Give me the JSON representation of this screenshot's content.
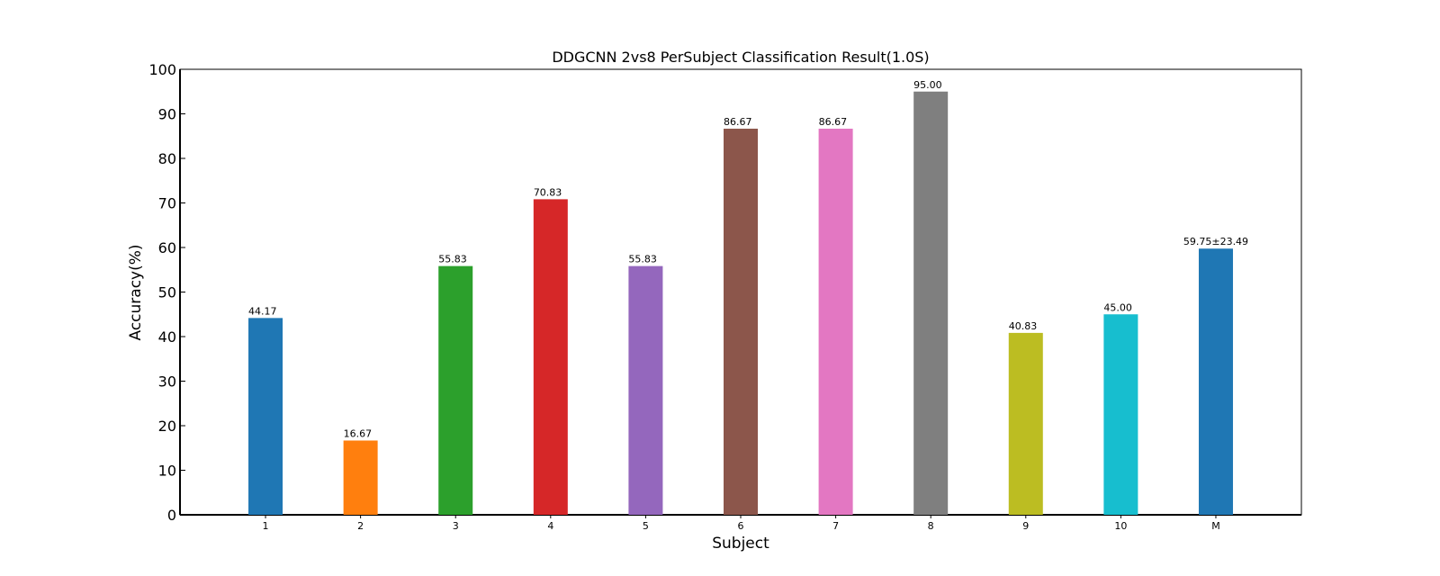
{
  "chart_data": {
    "type": "bar",
    "title": "DDGCNN 2vs8 PerSubject Classification Result(1.0S)",
    "xlabel": "Subject",
    "ylabel": "Accuracy(%)",
    "ylim": [
      0,
      100
    ],
    "yticks": [
      0,
      10,
      20,
      30,
      40,
      50,
      60,
      70,
      80,
      90,
      100
    ],
    "categories": [
      "1",
      "2",
      "3",
      "4",
      "5",
      "6",
      "7",
      "8",
      "9",
      "10",
      "M"
    ],
    "values": [
      44.17,
      16.67,
      55.83,
      70.83,
      55.83,
      86.67,
      86.67,
      95.0,
      40.83,
      45.0,
      59.75
    ],
    "data_labels": [
      "44.17",
      "16.67",
      "55.83",
      "70.83",
      "55.83",
      "86.67",
      "86.67",
      "95.00",
      "40.83",
      "45.00",
      "59.75±23.49"
    ],
    "colors": [
      "#1f77b4",
      "#ff7f0e",
      "#2ca02c",
      "#d62728",
      "#9467bd",
      "#8c564b",
      "#e377c2",
      "#7f7f7f",
      "#bcbd22",
      "#17becf",
      "#1f77b4"
    ],
    "label_colors": [
      "#000000",
      "#000000",
      "#000000",
      "#000000",
      "#000000",
      "#000000",
      "#000000",
      "#000000",
      "#000000",
      "#000000",
      "#ff0000"
    ],
    "grid": false,
    "legend": "none"
  }
}
